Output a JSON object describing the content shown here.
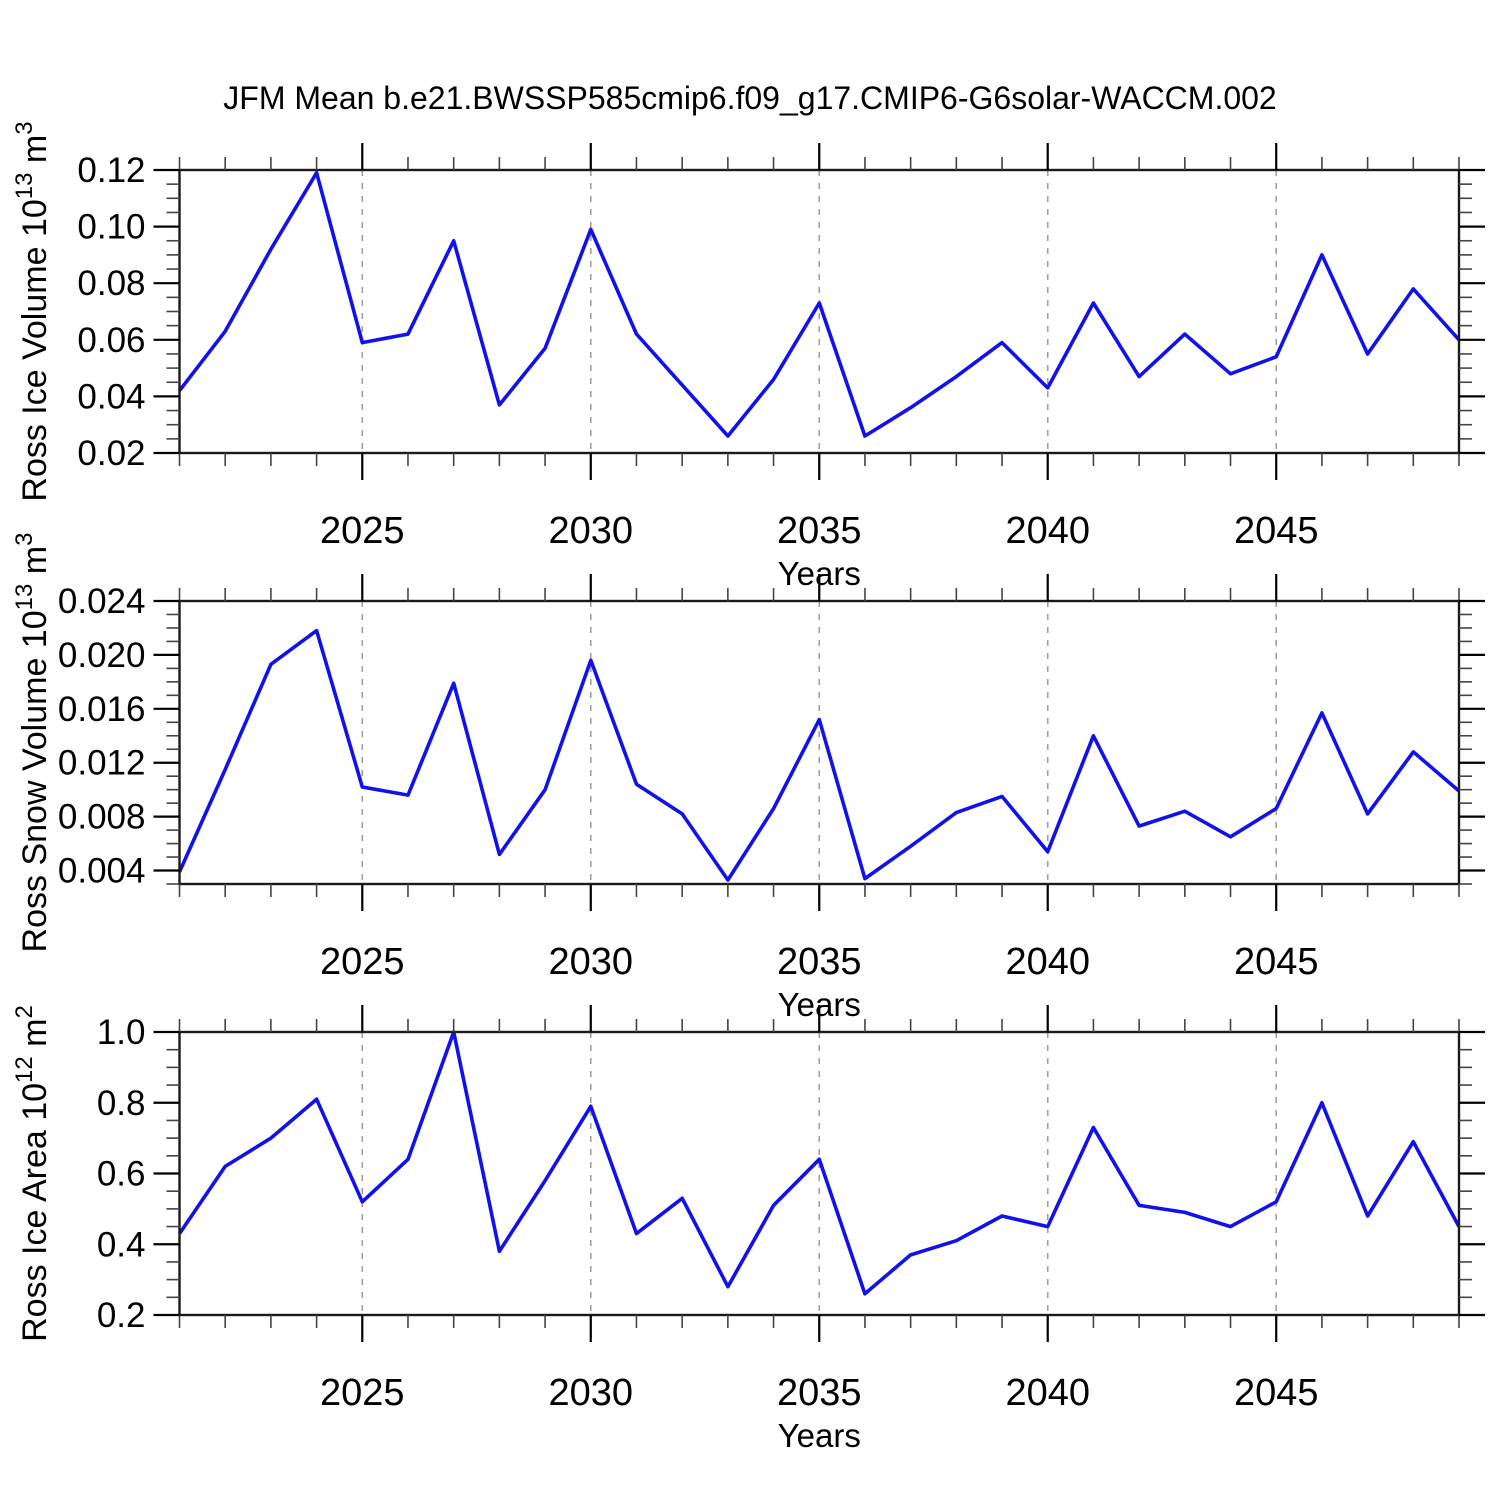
{
  "title": "JFM Mean b.e21.BWSSP585cmip6.f09_g17.CMIP6-G6solar-WACCM.002",
  "accent_color": "#1111ee",
  "grid_color": "#a0a0a0",
  "axis_color": "#1a1a1a",
  "chart_data": [
    {
      "type": "line",
      "name": "ross-ice-volume",
      "ylabel_parts": [
        {
          "t": "Ross Ice Volume 10"
        },
        {
          "t": "13",
          "sup": true
        },
        {
          "t": " m"
        },
        {
          "t": "3",
          "sup": true
        }
      ],
      "xlabel": "Years",
      "x": [
        2021,
        2022,
        2023,
        2024,
        2025,
        2026,
        2027,
        2028,
        2029,
        2030,
        2031,
        2032,
        2033,
        2034,
        2035,
        2036,
        2037,
        2038,
        2039,
        2040,
        2041,
        2042,
        2043,
        2044,
        2045,
        2046,
        2047,
        2048,
        2049
      ],
      "values": [
        0.042,
        0.063,
        0.092,
        0.119,
        0.059,
        0.062,
        0.095,
        0.037,
        0.057,
        0.099,
        0.062,
        0.044,
        0.026,
        0.046,
        0.073,
        0.026,
        0.036,
        0.047,
        0.059,
        0.043,
        0.073,
        0.047,
        0.062,
        0.048,
        0.054,
        0.09,
        0.055,
        0.078,
        0.06
      ],
      "xlim": [
        2021,
        2049
      ],
      "ylim": [
        0.02,
        0.12
      ],
      "y_major_ticks": [
        0.02,
        0.04,
        0.06,
        0.08,
        0.1,
        0.12
      ],
      "y_tick_labels": [
        "0.02",
        "0.04",
        "0.06",
        "0.08",
        "0.10",
        "0.12"
      ],
      "y_minor_step": 0.005,
      "x_major_ticks": [
        2025,
        2030,
        2035,
        2040,
        2045
      ],
      "x_tick_labels": [
        "2025",
        "2030",
        "2035",
        "2040",
        "2045"
      ],
      "x_minor_step": 1,
      "grid": "vertical-dashed",
      "line_color": "#1111ee"
    },
    {
      "type": "line",
      "name": "ross-snow-volume",
      "ylabel_parts": [
        {
          "t": "Ross Snow Volume 10"
        },
        {
          "t": "13",
          "sup": true
        },
        {
          "t": " m"
        },
        {
          "t": "3",
          "sup": true
        }
      ],
      "xlabel": "Years",
      "x": [
        2021,
        2022,
        2023,
        2024,
        2025,
        2026,
        2027,
        2028,
        2029,
        2030,
        2031,
        2032,
        2033,
        2034,
        2035,
        2036,
        2037,
        2038,
        2039,
        2040,
        2041,
        2042,
        2043,
        2044,
        2045,
        2046,
        2047,
        2048,
        2049
      ],
      "values": [
        0.0039,
        0.0115,
        0.0193,
        0.0218,
        0.0102,
        0.0096,
        0.0179,
        0.0052,
        0.01,
        0.0196,
        0.0104,
        0.0082,
        0.0033,
        0.0086,
        0.0152,
        0.0034,
        0.0058,
        0.0083,
        0.0095,
        0.0054,
        0.014,
        0.0073,
        0.0084,
        0.0065,
        0.0086,
        0.0157,
        0.0082,
        0.0128,
        0.0099
      ],
      "xlim": [
        2021,
        2049
      ],
      "ylim": [
        0.003,
        0.024
      ],
      "y_major_ticks": [
        0.004,
        0.008,
        0.012,
        0.016,
        0.02,
        0.024
      ],
      "y_tick_labels": [
        "0.004",
        "0.008",
        "0.012",
        "0.016",
        "0.020",
        "0.024"
      ],
      "y_minor_step": 0.001,
      "x_major_ticks": [
        2025,
        2030,
        2035,
        2040,
        2045
      ],
      "x_tick_labels": [
        "2025",
        "2030",
        "2035",
        "2040",
        "2045"
      ],
      "x_minor_step": 1,
      "grid": "vertical-dashed",
      "line_color": "#1111ee"
    },
    {
      "type": "line",
      "name": "ross-ice-area",
      "ylabel_parts": [
        {
          "t": "Ross Ice Area 10"
        },
        {
          "t": "12",
          "sup": true
        },
        {
          "t": " m"
        },
        {
          "t": "2",
          "sup": true
        }
      ],
      "xlabel": "Years",
      "x": [
        2021,
        2022,
        2023,
        2024,
        2025,
        2026,
        2027,
        2028,
        2029,
        2030,
        2031,
        2032,
        2033,
        2034,
        2035,
        2036,
        2037,
        2038,
        2039,
        2040,
        2041,
        2042,
        2043,
        2044,
        2045,
        2046,
        2047,
        2048,
        2049
      ],
      "values": [
        0.43,
        0.62,
        0.7,
        0.81,
        0.52,
        0.64,
        1.0,
        0.38,
        0.58,
        0.79,
        0.43,
        0.53,
        0.28,
        0.51,
        0.64,
        0.26,
        0.37,
        0.41,
        0.48,
        0.45,
        0.73,
        0.51,
        0.49,
        0.45,
        0.52,
        0.8,
        0.48,
        0.69,
        0.45
      ],
      "xlim": [
        2021,
        2049
      ],
      "ylim": [
        0.2,
        1.0
      ],
      "y_major_ticks": [
        0.2,
        0.4,
        0.6,
        0.8,
        1.0
      ],
      "y_tick_labels": [
        "0.2",
        "0.4",
        "0.6",
        "0.8",
        "1.0"
      ],
      "y_minor_step": 0.05,
      "x_major_ticks": [
        2025,
        2030,
        2035,
        2040,
        2045
      ],
      "x_tick_labels": [
        "2025",
        "2030",
        "2035",
        "2040",
        "2045"
      ],
      "x_minor_step": 1,
      "grid": "vertical-dashed",
      "line_color": "#1111ee"
    }
  ]
}
